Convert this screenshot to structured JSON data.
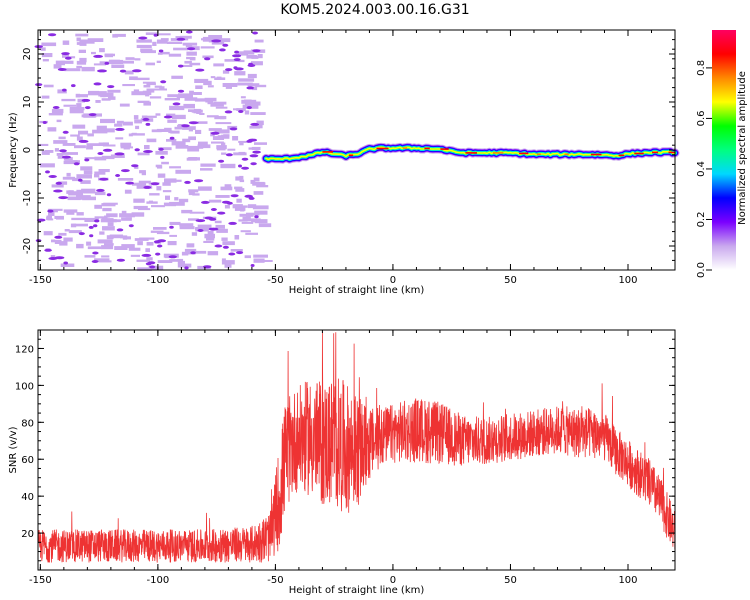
{
  "title": "KOM5.2024.003.00.16.G31",
  "chart_data": [
    {
      "type": "heatmap",
      "xlabel": "Height of straight line (km)",
      "ylabel": "Frequency (Hz)",
      "xlim": [
        -151,
        120
      ],
      "ylim": [
        -25,
        25
      ],
      "xticks": [
        -150,
        -100,
        -50,
        0,
        50,
        100
      ],
      "yticks": [
        -20,
        -10,
        0,
        10,
        20
      ],
      "noise_region_x": [
        -151,
        -54
      ],
      "trace": {
        "x": [
          -54,
          -50,
          -45,
          -40,
          -35,
          -30,
          -25,
          -20,
          -15,
          -10,
          -5,
          0,
          5,
          10,
          15,
          20,
          25,
          30,
          40,
          50,
          60,
          70,
          80,
          90,
          95,
          100,
          110,
          120
        ],
        "freq": [
          -1.8,
          -1.9,
          -1.8,
          -1.5,
          -1.1,
          -0.4,
          -0.8,
          -1.2,
          -0.8,
          0.2,
          0.4,
          0.4,
          0.4,
          0.4,
          0.3,
          0.2,
          -0.3,
          -0.6,
          -0.6,
          -0.6,
          -0.9,
          -0.9,
          -0.9,
          -1.0,
          -1.2,
          -0.8,
          -0.5,
          -0.5
        ]
      },
      "colorbar": {
        "label": "Normalized spectral amplitude",
        "range": [
          0.0,
          0.95
        ],
        "ticks": [
          0.0,
          0.2,
          0.4,
          0.6,
          0.8
        ],
        "colors": [
          "#ffffff",
          "#c9a8ee",
          "#7a00ff",
          "#0000ff",
          "#00d8ff",
          "#00ff80",
          "#00ff00",
          "#ffff00",
          "#ff8800",
          "#ff0000",
          "#ff0060"
        ]
      },
      "colors": {
        "scatter": "#c9a8ee",
        "scatter_core": "#8a2be2"
      }
    },
    {
      "type": "line",
      "xlabel": "Height of straight line (km)",
      "ylabel": "SNR (v/v)",
      "xlim": [
        -151,
        120
      ],
      "ylim": [
        0,
        130
      ],
      "xticks": [
        -150,
        -100,
        -50,
        0,
        50,
        100
      ],
      "yticks": [
        20,
        40,
        60,
        80,
        100,
        120
      ],
      "color": "#ee3333",
      "envelope": {
        "x": [
          -151,
          -120,
          -100,
          -80,
          -60,
          -52,
          -48,
          -46,
          -42,
          -35,
          -30,
          -25,
          -20,
          -15,
          -10,
          -5,
          0,
          10,
          20,
          30,
          40,
          50,
          60,
          70,
          80,
          85,
          90,
          95,
          100,
          105,
          110,
          115,
          120
        ],
        "mean": [
          13,
          13,
          13,
          13,
          14,
          18,
          42,
          60,
          70,
          72,
          68,
          70,
          66,
          64,
          68,
          72,
          74,
          76,
          74,
          70,
          70,
          72,
          74,
          76,
          74,
          74,
          72,
          64,
          58,
          52,
          46,
          34,
          20
        ],
        "amp": [
          9,
          9,
          9,
          9,
          10,
          14,
          30,
          30,
          28,
          32,
          34,
          36,
          36,
          30,
          20,
          16,
          16,
          18,
          17,
          14,
          13,
          13,
          13,
          13,
          14,
          14,
          13,
          13,
          13,
          13,
          13,
          13,
          12
        ]
      }
    }
  ]
}
